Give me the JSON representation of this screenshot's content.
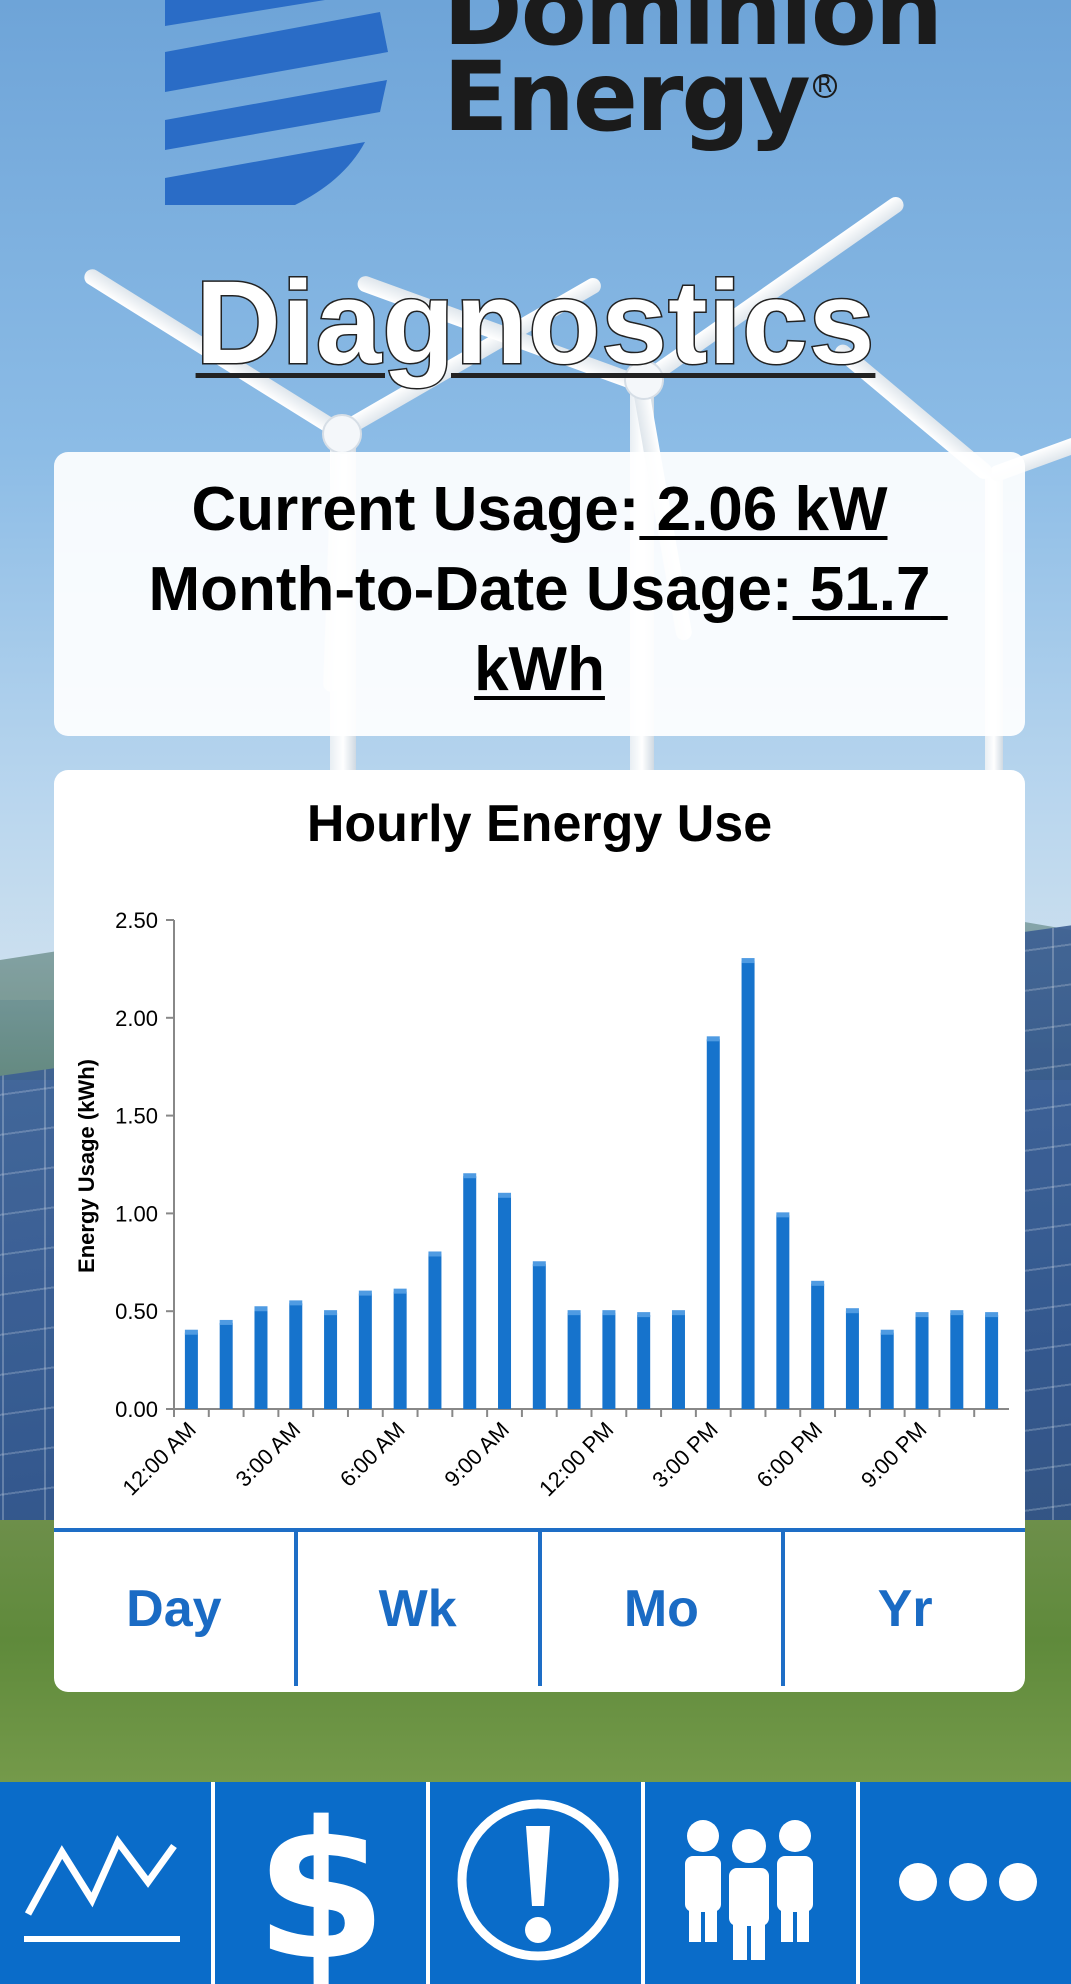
{
  "brand": {
    "line1": "Dominion",
    "line2": "Energy",
    "registered": "R",
    "mark_color": "#2a6cc6"
  },
  "page": {
    "title": "Diagnostics"
  },
  "usage": {
    "current_label": "Current Usage:",
    "current_value": " 2.06 kW",
    "mtd_label": "Month-to-Date Usage:",
    "mtd_value": " 51.7 kWh"
  },
  "chart_data": {
    "type": "bar",
    "title": "Hourly Energy Use",
    "ylabel": "Energy Usage (kWh)",
    "xlabel": "",
    "ylim": [
      0,
      2.5
    ],
    "yticks": [
      "0.00",
      "0.50",
      "1.00",
      "1.50",
      "2.00",
      "2.50"
    ],
    "x_tick_labels": [
      "12:00 AM",
      "3:00 AM",
      "6:00 AM",
      "9:00 AM",
      "12:00 PM",
      "3:00 PM",
      "6:00 PM",
      "9:00 PM"
    ],
    "values": [
      0.39,
      0.44,
      0.51,
      0.54,
      0.49,
      0.59,
      0.6,
      0.79,
      1.19,
      1.09,
      0.74,
      0.49,
      0.49,
      0.48,
      0.49,
      1.89,
      2.29,
      0.99,
      0.64,
      0.5,
      0.39,
      0.48,
      0.49,
      0.48
    ],
    "bar_color": "#1673cc",
    "grid": false
  },
  "range_tabs": [
    {
      "label": "Day"
    },
    {
      "label": "Wk"
    },
    {
      "label": "Mo"
    },
    {
      "label": "Yr"
    }
  ],
  "nav": {
    "items": [
      {
        "icon": "usage-trend-icon"
      },
      {
        "icon": "dollar-icon"
      },
      {
        "icon": "alert-icon"
      },
      {
        "icon": "people-icon"
      },
      {
        "icon": "more-icon"
      }
    ],
    "color": "#0a6cc9"
  }
}
